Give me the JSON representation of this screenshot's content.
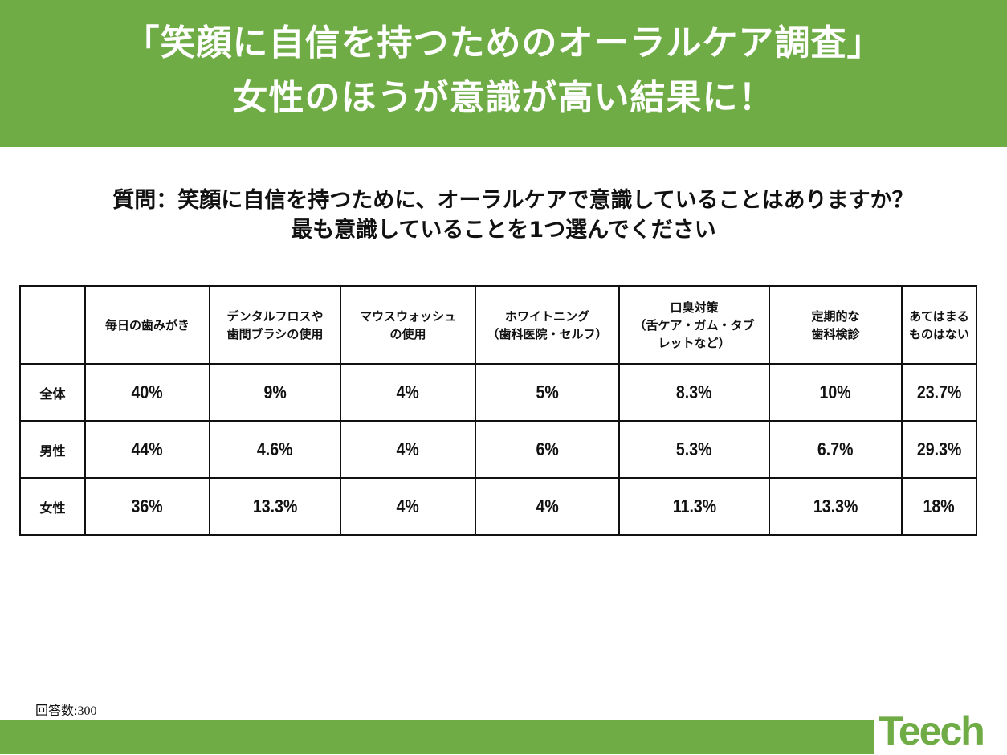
{
  "header": {
    "title_line1": "「笑顔に自信を持つためのオーラルケア調査」",
    "title_line2": "女性のほうが意識が高い結果に！"
  },
  "question": {
    "line1": "質問：笑顔に自信を持つために、オーラルケアで意識していることはありますか？",
    "line2": "最も意識していることを1つ選んでください"
  },
  "table": {
    "columns": [
      [
        "毎日の歯みがき"
      ],
      [
        "デンタルフロスや",
        "歯間ブラシの使用"
      ],
      [
        "マウスウォッシュ",
        "の使用"
      ],
      [
        "ホワイトニング",
        "（歯科医院・セルフ）"
      ],
      [
        "口臭対策",
        "（舌ケア・ガム・タブ",
        "レットなど）"
      ],
      [
        "定期的な",
        "歯科検診"
      ],
      [
        "あてはまる",
        "ものはない"
      ]
    ],
    "rows": [
      {
        "label": "全体",
        "values": [
          "40%",
          "9%",
          "4%",
          "5%",
          "8.3%",
          "10%",
          "23.7%"
        ]
      },
      {
        "label": "男性",
        "values": [
          "44%",
          "4.6%",
          "4%",
          "6%",
          "5.3%",
          "6.7%",
          "29.3%"
        ]
      },
      {
        "label": "女性",
        "values": [
          "36%",
          "13.3%",
          "4%",
          "4%",
          "11.3%",
          "13.3%",
          "18%"
        ]
      }
    ]
  },
  "respondents": "回答数:300",
  "logo_text": "Teech",
  "colors": {
    "brand_green": "#6fac46"
  }
}
